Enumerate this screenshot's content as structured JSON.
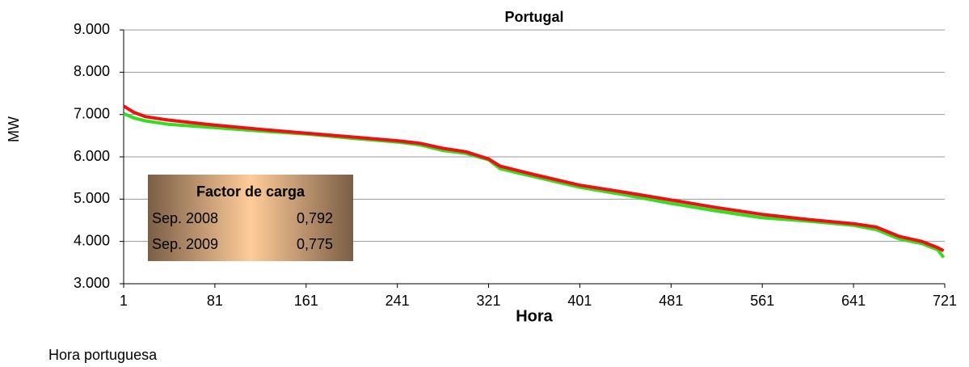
{
  "chart_data": {
    "type": "line",
    "title": "Portugal",
    "y_label": "MW",
    "x_label": "Hora",
    "footnote": "Hora portuguesa",
    "x": [
      1,
      10,
      20,
      40,
      81,
      121,
      161,
      201,
      241,
      261,
      281,
      301,
      321,
      331,
      361,
      401,
      441,
      481,
      521,
      561,
      601,
      641,
      661,
      681,
      701,
      715,
      720
    ],
    "series": [
      {
        "name": "Sep. 2009",
        "color": "#33dd22",
        "load_factor": {
          "value": 0.775,
          "label": "0,775"
        },
        "values": [
          7020,
          6920,
          6850,
          6770,
          6690,
          6610,
          6540,
          6440,
          6350,
          6280,
          6150,
          6080,
          5930,
          5720,
          5530,
          5280,
          5100,
          4900,
          4720,
          4560,
          4480,
          4380,
          4280,
          4060,
          3950,
          3800,
          3620
        ]
      },
      {
        "name": "Sep. 2008",
        "color": "#ee1111",
        "load_factor": {
          "value": 0.792,
          "label": "0,792"
        },
        "values": [
          7200,
          7050,
          6950,
          6870,
          6750,
          6650,
          6560,
          6470,
          6380,
          6320,
          6200,
          6120,
          5950,
          5780,
          5580,
          5330,
          5160,
          4980,
          4800,
          4640,
          4520,
          4420,
          4340,
          4120,
          4000,
          3850,
          3780
        ]
      }
    ],
    "table_title": "Factor de carga",
    "xlim": [
      1,
      721
    ],
    "xticks": [
      1,
      81,
      161,
      241,
      321,
      401,
      481,
      561,
      641,
      721
    ],
    "ylim": [
      3000,
      9000
    ],
    "yticks": [
      {
        "value": 3000,
        "label": "3.000"
      },
      {
        "value": 4000,
        "label": "4.000"
      },
      {
        "value": 5000,
        "label": "5.000"
      },
      {
        "value": 6000,
        "label": "6.000"
      },
      {
        "value": 7000,
        "label": "7.000"
      },
      {
        "value": 8000,
        "label": "8.000"
      },
      {
        "value": 9000,
        "label": "9.000"
      }
    ],
    "grid": true
  }
}
